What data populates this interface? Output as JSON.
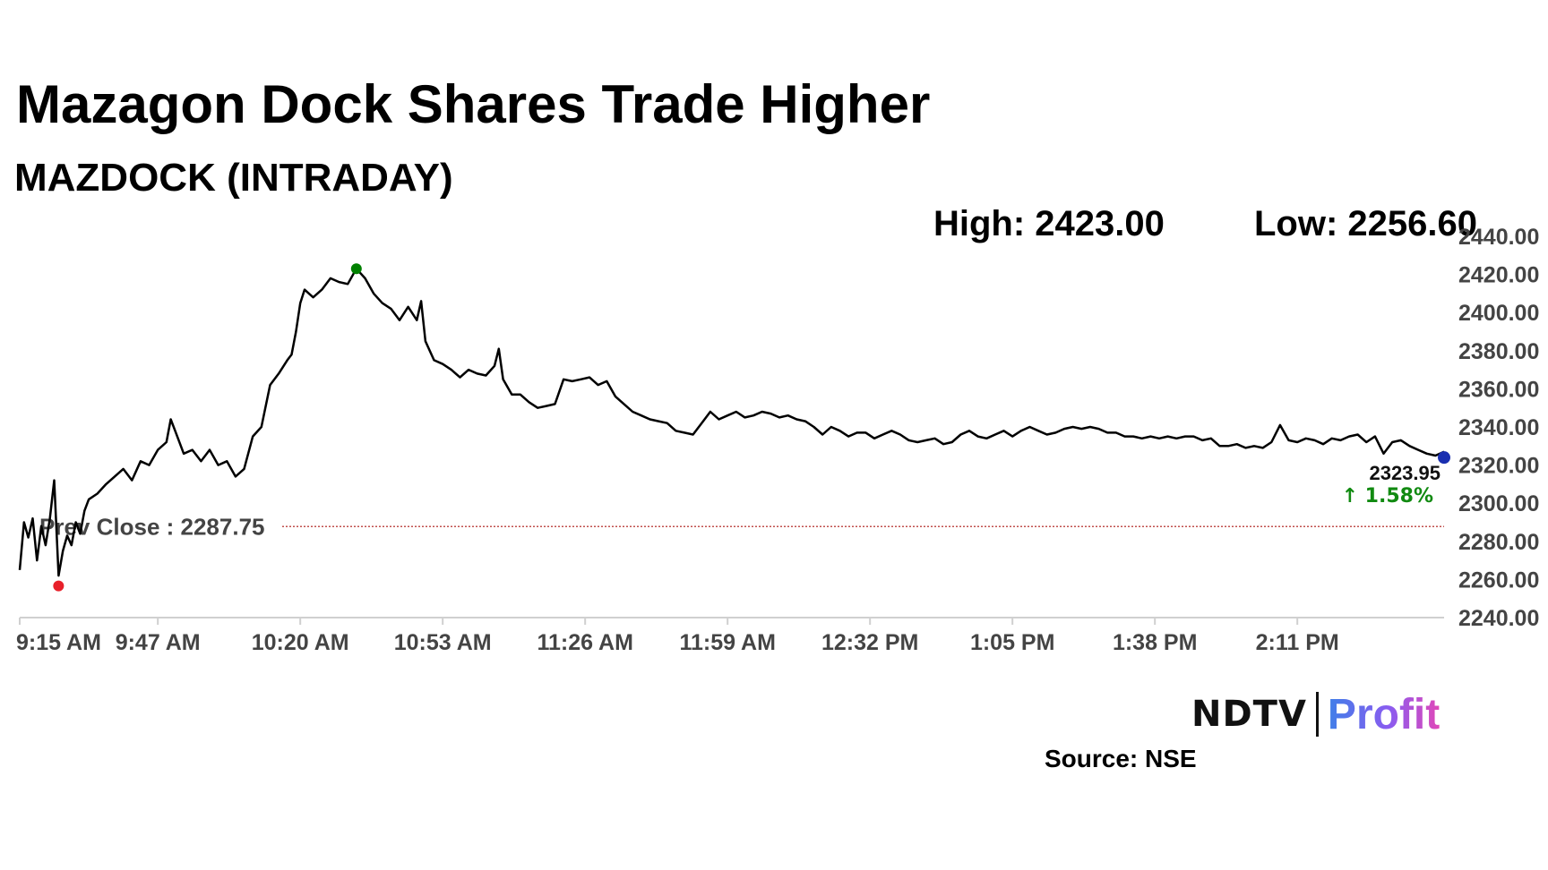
{
  "header": {
    "title": "Mazagon Dock Shares Trade Higher",
    "subtitle": "MAZDOCK (INTRADAY)",
    "high_label": "High: 2423.00",
    "low_label": "Low: 2256.60"
  },
  "brand": {
    "ndtv": "NDTV",
    "profit": "Profit"
  },
  "source": "Source: NSE",
  "colors": {
    "line": "#000000",
    "high_marker": "#008000",
    "low_marker": "#e8202a",
    "last_marker": "#1a2fb0",
    "prev_close_line": "#c0504d",
    "change_positive": "#118a11",
    "axis": "#d0d0d0",
    "tick_text": "#444444"
  },
  "chart_data": {
    "type": "line",
    "title": "Mazagon Dock Shares Trade Higher",
    "subtitle": "MAZDOCK (INTRADAY)",
    "x_tick_labels": [
      "9:15 AM",
      "9:47 AM",
      "10:20 AM",
      "10:53 AM",
      "11:26 AM",
      "11:59 AM",
      "12:32 PM",
      "1:05 PM",
      "1:38 PM",
      "2:11 PM"
    ],
    "x_tick_minutes": [
      0,
      32,
      65,
      98,
      131,
      164,
      197,
      230,
      263,
      296
    ],
    "x_range_minutes": [
      0,
      330
    ],
    "y_ticks": [
      "2240.00",
      "2260.00",
      "2280.00",
      "2300.00",
      "2320.00",
      "2340.00",
      "2360.00",
      "2380.00",
      "2400.00",
      "2420.00",
      "2440.00"
    ],
    "ylim": [
      2240,
      2440
    ],
    "y_axis_side": "right",
    "grid": false,
    "prev_close": 2287.75,
    "prev_close_label": "Prev Close : 2287.75",
    "high": {
      "minute": 78,
      "value": 2423.0
    },
    "low": {
      "minute": 9,
      "value": 2256.6
    },
    "last": {
      "minute": 330,
      "value": 2323.95,
      "label": "2323.95"
    },
    "change_label": "↑ 1.58%",
    "series": [
      {
        "minutes": [
          0,
          1,
          2,
          3,
          4,
          5,
          6,
          7,
          8,
          9,
          10,
          11,
          12,
          13,
          14,
          15,
          16,
          18,
          20,
          22,
          24,
          26,
          28,
          30,
          32,
          34,
          35,
          36,
          38,
          40,
          42,
          44,
          46,
          48,
          50,
          52,
          54,
          56,
          58,
          60,
          62,
          63,
          64,
          65,
          66,
          67,
          68,
          70,
          72,
          74,
          76,
          78,
          80,
          82,
          84,
          86,
          88,
          90,
          92,
          93,
          94,
          96,
          98,
          100,
          102,
          104,
          106,
          108,
          110,
          111,
          112,
          114,
          116,
          118,
          120,
          122,
          124,
          126,
          128,
          130,
          132,
          134,
          136,
          138,
          140,
          142,
          144,
          146,
          148,
          150,
          152,
          154,
          156,
          158,
          160,
          162,
          164,
          166,
          168,
          170,
          172,
          174,
          176,
          178,
          180,
          182,
          184,
          186,
          188,
          190,
          192,
          194,
          196,
          198,
          200,
          202,
          204,
          206,
          208,
          210,
          212,
          214,
          216,
          218,
          220,
          222,
          224,
          226,
          228,
          230,
          232,
          234,
          236,
          238,
          240,
          242,
          244,
          246,
          248,
          250,
          252,
          254,
          256,
          258,
          260,
          262,
          264,
          266,
          268,
          270,
          272,
          274,
          276,
          278,
          280,
          282,
          284,
          286,
          288,
          290,
          292,
          294,
          296,
          298,
          300,
          302,
          304,
          306,
          308,
          310,
          312,
          314,
          316,
          318,
          320,
          322,
          324,
          326,
          328,
          330
        ],
        "values": [
          2265,
          2290,
          2282,
          2292,
          2270,
          2288,
          2278,
          2292,
          2312,
          2262,
          2275,
          2283,
          2278,
          2290,
          2284,
          2296,
          2302,
          2305,
          2310,
          2314,
          2318,
          2312,
          2322,
          2320,
          2328,
          2332,
          2344,
          2338,
          2326,
          2328,
          2322,
          2328,
          2320,
          2322,
          2314,
          2318,
          2335,
          2340,
          2362,
          2368,
          2375,
          2378,
          2390,
          2405,
          2412,
          2410,
          2408,
          2412,
          2418,
          2416,
          2415,
          2423,
          2418,
          2410,
          2405,
          2402,
          2396,
          2403,
          2396,
          2406,
          2385,
          2375,
          2373,
          2370,
          2366,
          2370,
          2368,
          2367,
          2372,
          2381,
          2365,
          2357,
          2357,
          2353,
          2350,
          2351,
          2352,
          2365,
          2364,
          2365,
          2366,
          2362,
          2364,
          2356,
          2352,
          2348,
          2346,
          2344,
          2343,
          2342,
          2338,
          2337,
          2336,
          2342,
          2348,
          2344,
          2346,
          2348,
          2345,
          2346,
          2348,
          2347,
          2345,
          2346,
          2344,
          2343,
          2340,
          2336,
          2340,
          2338,
          2335,
          2337,
          2337,
          2334,
          2336,
          2338,
          2336,
          2333,
          2332,
          2333,
          2334,
          2331,
          2332,
          2336,
          2338,
          2335,
          2334,
          2336,
          2338,
          2335,
          2338,
          2340,
          2338,
          2336,
          2337,
          2339,
          2340,
          2339,
          2340,
          2339,
          2337,
          2337,
          2335,
          2335,
          2334,
          2335,
          2334,
          2335,
          2334,
          2335,
          2335,
          2333,
          2334,
          2330,
          2330,
          2331,
          2329,
          2330,
          2329,
          2332,
          2341,
          2333,
          2332,
          2334,
          2333,
          2331,
          2334,
          2333,
          2335,
          2336,
          2332,
          2335,
          2326,
          2332,
          2333,
          2330,
          2328,
          2326,
          2325,
          2327,
          2326,
          2325,
          2324,
          2323.95
        ]
      }
    ]
  }
}
